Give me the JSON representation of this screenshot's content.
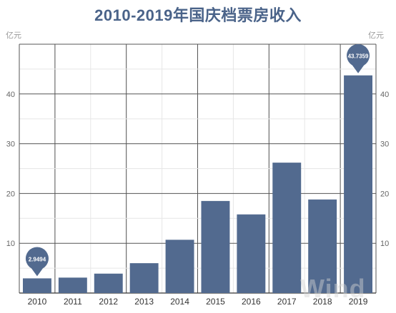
{
  "chart_data": {
    "type": "bar",
    "title": "2010-2019年国庆档票房收入",
    "unit_left": "亿元",
    "unit_right": "亿元",
    "categories": [
      "2010",
      "2011",
      "2012",
      "2013",
      "2014",
      "2015",
      "2016",
      "2017",
      "2018",
      "2019"
    ],
    "values": [
      2.9494,
      3.1,
      3.9,
      6.0,
      10.7,
      18.5,
      15.8,
      26.2,
      18.8,
      43.7359
    ],
    "annotations": [
      {
        "category": "2010",
        "label": "2.9494"
      },
      {
        "category": "2019",
        "label": "43.7359"
      }
    ],
    "yticks": [
      10,
      20,
      30,
      40
    ],
    "ylim": [
      0,
      50
    ],
    "bar_color": "#526a8f",
    "grid": true,
    "watermark": "Wind"
  }
}
